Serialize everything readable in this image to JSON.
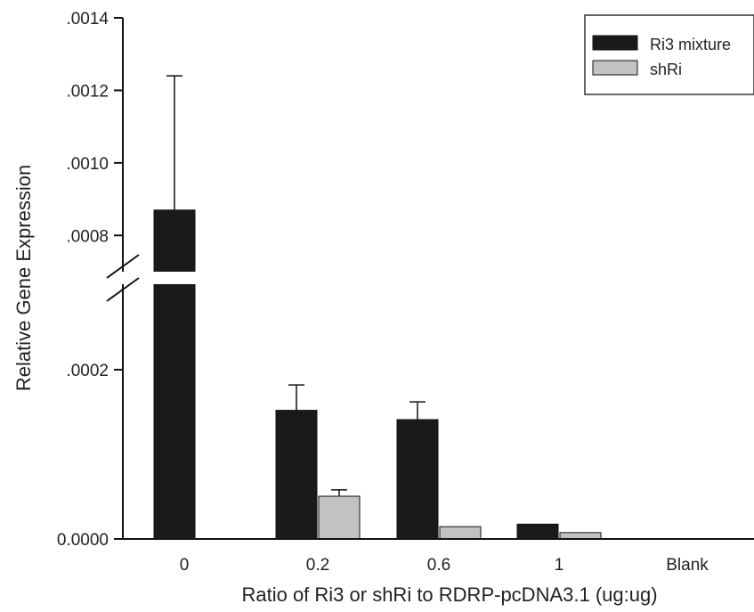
{
  "chart_data": {
    "type": "bar",
    "xlabel": "Ratio of Ri3 or shRi to RDRP-pcDNA3.1 (ug:ug)",
    "ylabel": "Relative Gene Expression",
    "categories": [
      "0",
      "0.2",
      "0.6",
      "1",
      "Blank"
    ],
    "series": [
      {
        "name": "Ri3 mixture",
        "color": "#1a1a1a",
        "values": [
          0.00087,
          0.000152,
          0.000141,
          1.75e-05,
          null
        ],
        "errors": [
          0.00037,
          3e-05,
          2.1e-05,
          0,
          null
        ]
      },
      {
        "name": "shRi",
        "color": "#c2c2c2",
        "values": [
          null,
          5.05e-05,
          1.45e-05,
          7.5e-06,
          null
        ],
        "errors": [
          null,
          7.5e-06,
          0,
          0,
          null
        ]
      }
    ],
    "y_axis": {
      "broken": true,
      "lower_segment": [
        0,
        0.0003
      ],
      "upper_segment": [
        0.0007,
        0.0014
      ],
      "tick_labels_lower": [
        {
          "value": 0,
          "label": "0.0000"
        },
        {
          "value": 0.0002,
          "label": ".0002"
        }
      ],
      "tick_labels_upper": [
        {
          "value": 0.0008,
          "label": ".0008"
        },
        {
          "value": 0.001,
          "label": ".0010"
        },
        {
          "value": 0.0012,
          "label": ".0012"
        },
        {
          "value": 0.0014,
          "label": ".0014"
        }
      ]
    },
    "legend_position": "top-right",
    "grid": false
  }
}
